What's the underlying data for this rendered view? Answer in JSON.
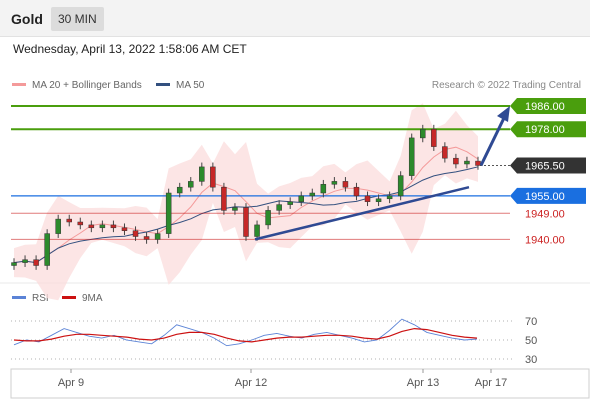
{
  "header": {
    "instrument": "Gold",
    "timeframe": "30 MIN"
  },
  "datetime": "Wednesday, April 13, 2022 1:58:06 AM CET",
  "legend": {
    "bollinger": "MA 20 + Bollinger Bands",
    "ma50": "MA 50",
    "copyright": "Research © 2022 Trading Central"
  },
  "rsi_legend": {
    "rsi": "RSI",
    "ma9": "9MA"
  },
  "colors": {
    "resistance": "#4a9e0d",
    "current_price": "#333333",
    "pivot": "#1a6fe0",
    "support": "#cc2222",
    "trend_arrow": "#2f4a93",
    "bollinger": "#f49a9a",
    "ma50": "#33507f",
    "rsi": "#5b83d6",
    "rsi_ma": "#cc1111"
  },
  "chart_data": [
    {
      "type": "candlestick",
      "price_levels": [
        {
          "label": "1986.00",
          "value": 1986.0,
          "role": "resistance"
        },
        {
          "label": "1978.00",
          "value": 1978.0,
          "role": "resistance"
        },
        {
          "label": "1965.50",
          "value": 1965.5,
          "role": "current"
        },
        {
          "label": "1955.00",
          "value": 1955.0,
          "role": "pivot"
        },
        {
          "label": "1949.00",
          "value": 1949.0,
          "role": "support"
        },
        {
          "label": "1940.00",
          "value": 1940.0,
          "role": "support"
        }
      ],
      "x_ticks": [
        "Apr 9",
        "Apr 12",
        "Apr 13",
        "Apr 17"
      ],
      "approx_close_path": [
        1932,
        1933,
        1931,
        1942,
        1947,
        1946,
        1945,
        1944,
        1945,
        1944,
        1943,
        1941,
        1940,
        1942,
        1956,
        1958,
        1960,
        1965,
        1958,
        1950,
        1951,
        1941,
        1945,
        1950,
        1952,
        1953,
        1955,
        1956,
        1959,
        1960,
        1958,
        1955,
        1953,
        1954,
        1955,
        1962,
        1975,
        1978,
        1972,
        1968,
        1966,
        1967,
        1965.5
      ],
      "trendline": {
        "from": 1940.0,
        "to": 1958.0
      },
      "forecast_arrow": {
        "from": 1965.5,
        "to": 1986.0
      }
    },
    {
      "type": "line",
      "title": "RSI",
      "series": [
        {
          "name": "RSI",
          "values": [
            45,
            50,
            48,
            55,
            62,
            58,
            54,
            52,
            55,
            50,
            48,
            46,
            55,
            66,
            62,
            58,
            52,
            44,
            46,
            50,
            55,
            57,
            54,
            52,
            56,
            58,
            55,
            52,
            48,
            50,
            60,
            72,
            66,
            58,
            55,
            52,
            50,
            51
          ]
        },
        {
          "name": "9MA",
          "values": [
            50,
            49,
            49,
            51,
            54,
            56,
            56,
            55,
            54,
            53,
            51,
            50,
            52,
            56,
            58,
            58,
            56,
            52,
            49,
            48,
            50,
            52,
            53,
            53,
            54,
            55,
            55,
            54,
            52,
            51,
            54,
            59,
            62,
            61,
            58,
            55,
            53,
            52
          ]
        }
      ],
      "ylim": [
        20,
        80
      ],
      "y_ticks": [
        70,
        50,
        30
      ]
    }
  ]
}
